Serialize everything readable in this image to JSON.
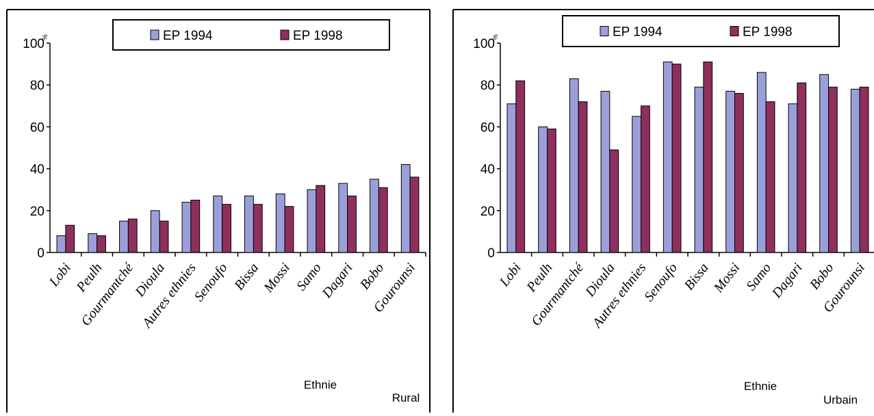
{
  "colors": {
    "ep1994": "#9B9FD9",
    "ep1998": "#8E2F5E",
    "frame": "#000000"
  },
  "chart_data": [
    {
      "type": "bar",
      "categories": [
        "Lobi",
        "Peulh",
        "Gourmantché",
        "Dioula",
        "Autres ethnies",
        "Senoufo",
        "Bissa",
        "Mossi",
        "Samo",
        "Dagari",
        "Bobo",
        "Gourounsi"
      ],
      "series": [
        {
          "name": "EP 1994",
          "values": [
            8,
            9,
            15,
            20,
            24,
            27,
            27,
            28,
            30,
            33,
            35,
            42
          ]
        },
        {
          "name": "EP 1998",
          "values": [
            13,
            8,
            16,
            15,
            25,
            23,
            23,
            22,
            32,
            27,
            31,
            36
          ]
        }
      ],
      "ylim": [
        0,
        100
      ],
      "yticks": [
        "0",
        "20",
        "40",
        "60",
        "80",
        "100"
      ],
      "y_unit": "%",
      "xlabel": "Ethnie",
      "panel_label": "Rural",
      "legend": "top"
    },
    {
      "type": "bar",
      "categories": [
        "Lobi",
        "Peulh",
        "Gourmantché",
        "Dioula",
        "Autres ethnies",
        "Senoufo",
        "Bissa",
        "Mossi",
        "Samo",
        "Dagari",
        "Bobo",
        "Gourounsi"
      ],
      "series": [
        {
          "name": "EP 1994",
          "values": [
            71,
            60,
            83,
            77,
            65,
            91,
            79,
            77,
            86,
            71,
            85,
            78
          ]
        },
        {
          "name": "EP 1998",
          "values": [
            82,
            59,
            72,
            49,
            70,
            90,
            91,
            76,
            72,
            81,
            79,
            79
          ]
        }
      ],
      "ylim": [
        0,
        100
      ],
      "yticks": [
        "0",
        "20",
        "40",
        "60",
        "80",
        "100"
      ],
      "y_unit": "%",
      "xlabel": "Ethnie",
      "panel_label": "Urbain",
      "legend": "top"
    }
  ]
}
